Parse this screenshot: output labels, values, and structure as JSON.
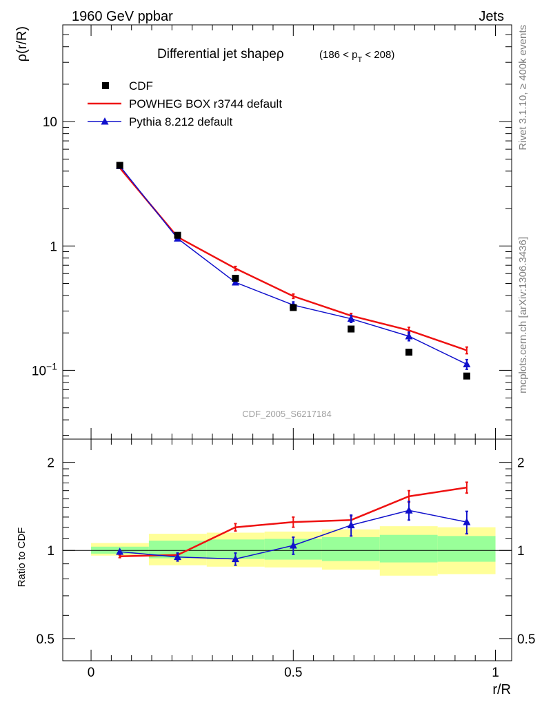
{
  "header": {
    "left": "1960 GeV ppbar",
    "right": "Jets",
    "side_top": "Rivet 3.1.10, ≥ 400k events",
    "side_bottom": "mcplots.cern.ch [arXiv:1306.3436]"
  },
  "chart_data": [
    {
      "type": "line",
      "panel": "main",
      "title_main": "Differential jet shapeρ",
      "title_range_prefix": "(186 < p",
      "title_range_sub": "T",
      "title_range_suffix": " < 208)",
      "ylabel": "ρ(r/R)",
      "yscale": "log",
      "ylim": [
        0.028,
        60
      ],
      "xlim": [
        -0.07,
        1.04
      ],
      "y_ticks": [
        {
          "value": 10,
          "label": "10"
        },
        {
          "value": 1,
          "label": "1"
        },
        {
          "value": 0.1,
          "label": "10−1"
        }
      ],
      "watermark": "CDF_2005_S6217184",
      "legend_position": "top-left",
      "series": [
        {
          "name": "CDF",
          "color": "#000000",
          "marker": "square",
          "x": [
            0.071,
            0.214,
            0.357,
            0.5,
            0.643,
            0.786,
            0.929
          ],
          "y": [
            4.45,
            1.22,
            0.55,
            0.32,
            0.215,
            0.14,
            0.09
          ]
        },
        {
          "name": "POWHEG BOX r3744 default",
          "color": "#ee1111",
          "marker": "none",
          "x": [
            0.071,
            0.214,
            0.357,
            0.5,
            0.643,
            0.786,
            0.929
          ],
          "y": [
            4.25,
            1.18,
            0.66,
            0.395,
            0.275,
            0.21,
            0.145
          ],
          "err": [
            0.03,
            0.01,
            0.025,
            0.016,
            0.012,
            0.012,
            0.009
          ]
        },
        {
          "name": "Pythia 8.212 default",
          "color": "#1111cc",
          "marker": "triangle",
          "x": [
            0.071,
            0.214,
            0.357,
            0.5,
            0.643,
            0.786,
            0.929
          ],
          "y": [
            4.4,
            1.15,
            0.51,
            0.335,
            0.26,
            0.188,
            0.112
          ],
          "err": [
            0.04,
            0.02,
            0.022,
            0.02,
            0.017,
            0.015,
            0.01
          ]
        }
      ]
    },
    {
      "type": "line",
      "panel": "ratio",
      "ylabel": "Ratio to CDF",
      "xlabel": "r/R",
      "yscale": "log",
      "ylim": [
        0.42,
        2.4
      ],
      "xlim": [
        -0.07,
        1.04
      ],
      "x_ticks": [
        {
          "value": 0,
          "label": "0"
        },
        {
          "value": 0.5,
          "label": "0.5"
        },
        {
          "value": 1,
          "label": "1"
        }
      ],
      "y_ticks": [
        {
          "value": 2,
          "label": "2"
        },
        {
          "value": 1,
          "label": "1"
        },
        {
          "value": 0.5,
          "label": "0.5"
        }
      ],
      "uncertainty_bands": {
        "bin_edges": [
          0,
          0.143,
          0.286,
          0.429,
          0.571,
          0.714,
          0.857,
          1.0
        ],
        "yellow": [
          [
            0.96,
            1.06
          ],
          [
            0.89,
            1.14
          ],
          [
            0.88,
            1.15
          ],
          [
            0.875,
            1.16
          ],
          [
            0.86,
            1.18
          ],
          [
            0.82,
            1.21
          ],
          [
            0.83,
            1.2
          ]
        ],
        "green": [
          [
            0.975,
            1.03
          ],
          [
            0.94,
            1.08
          ],
          [
            0.935,
            1.09
          ],
          [
            0.93,
            1.095
          ],
          [
            0.92,
            1.11
          ],
          [
            0.91,
            1.13
          ],
          [
            0.915,
            1.12
          ]
        ],
        "yellow_color": "#ffff99",
        "green_color": "#99ff99"
      },
      "series": [
        {
          "name": "POWHEG BOX r3744 default",
          "color": "#ee1111",
          "marker": "none",
          "x": [
            0.071,
            0.214,
            0.357,
            0.5,
            0.643,
            0.786,
            0.929
          ],
          "y": [
            0.955,
            0.965,
            1.2,
            1.25,
            1.27,
            1.53,
            1.64
          ],
          "err": [
            0.01,
            0.01,
            0.035,
            0.05,
            0.04,
            0.07,
            0.07
          ]
        },
        {
          "name": "Pythia 8.212 default",
          "color": "#1111cc",
          "marker": "triangle",
          "x": [
            0.071,
            0.214,
            0.357,
            0.5,
            0.643,
            0.786,
            0.929
          ],
          "y": [
            0.99,
            0.95,
            0.935,
            1.04,
            1.22,
            1.37,
            1.25
          ],
          "err": [
            0.01,
            0.03,
            0.045,
            0.07,
            0.1,
            0.1,
            0.11
          ]
        }
      ]
    }
  ]
}
